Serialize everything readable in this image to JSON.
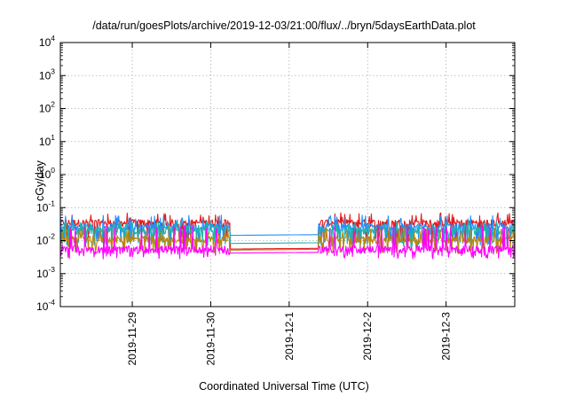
{
  "chart_data": {
    "type": "line",
    "title": "/data/run/goesPlots/archive/2019-12-03/21:00/flux/../bryn/5daysEarthData.plot",
    "xlabel": "Coordinated Universal Time (UTC)",
    "ylabel": "cGy/day",
    "yscale": "log",
    "ylim": [
      0.0001,
      10000
    ],
    "xlim": [
      "2019-11-28T02:00",
      "2019-12-03T21:00"
    ],
    "grid": true,
    "legend": "none",
    "y_ticks": [
      {
        "base": "10",
        "exp": "-4",
        "value": 0.0001
      },
      {
        "base": "10",
        "exp": "-3",
        "value": 0.001
      },
      {
        "base": "10",
        "exp": "-2",
        "value": 0.01
      },
      {
        "base": "10",
        "exp": "-1",
        "value": 0.1
      },
      {
        "base": "10",
        "exp": "0",
        "value": 1
      },
      {
        "base": "10",
        "exp": "1",
        "value": 10
      },
      {
        "base": "10",
        "exp": "2",
        "value": 100
      },
      {
        "base": "10",
        "exp": "3",
        "value": 1000
      },
      {
        "base": "10",
        "exp": "4",
        "value": 10000
      }
    ],
    "x_ticks": [
      {
        "label": "2019-11-29",
        "date": "2019-11-29T00:00"
      },
      {
        "label": "2019-11-30",
        "date": "2019-11-30T00:00"
      },
      {
        "label": "2019-12-1",
        "date": "2019-12-01T00:00"
      },
      {
        "label": "2019-12-2",
        "date": "2019-12-02T00:00"
      },
      {
        "label": "2019-12-3",
        "date": "2019-12-03T00:00"
      }
    ],
    "data_gap": [
      "2019-11-30T06:00",
      "2019-12-01T09:00"
    ],
    "series": [
      {
        "color": "#e41a1c",
        "base": 0.035,
        "low": 0.012,
        "high": 0.07,
        "gap_level": 0.004
      },
      {
        "color": "#1e90ff",
        "base": 0.026,
        "low": 0.009,
        "high": 0.06,
        "gap_level": 0.013
      },
      {
        "color": "#20b2aa",
        "base": 0.02,
        "low": 0.008,
        "high": 0.04,
        "gap_level": 0.007
      },
      {
        "color": "#b8860b",
        "base": 0.011,
        "low": 0.005,
        "high": 0.025,
        "gap_level": 0.0045
      },
      {
        "color": "#ff00ff",
        "base": 0.0055,
        "low": 0.0035,
        "high": 0.03,
        "gap_level": 0.004
      }
    ]
  }
}
